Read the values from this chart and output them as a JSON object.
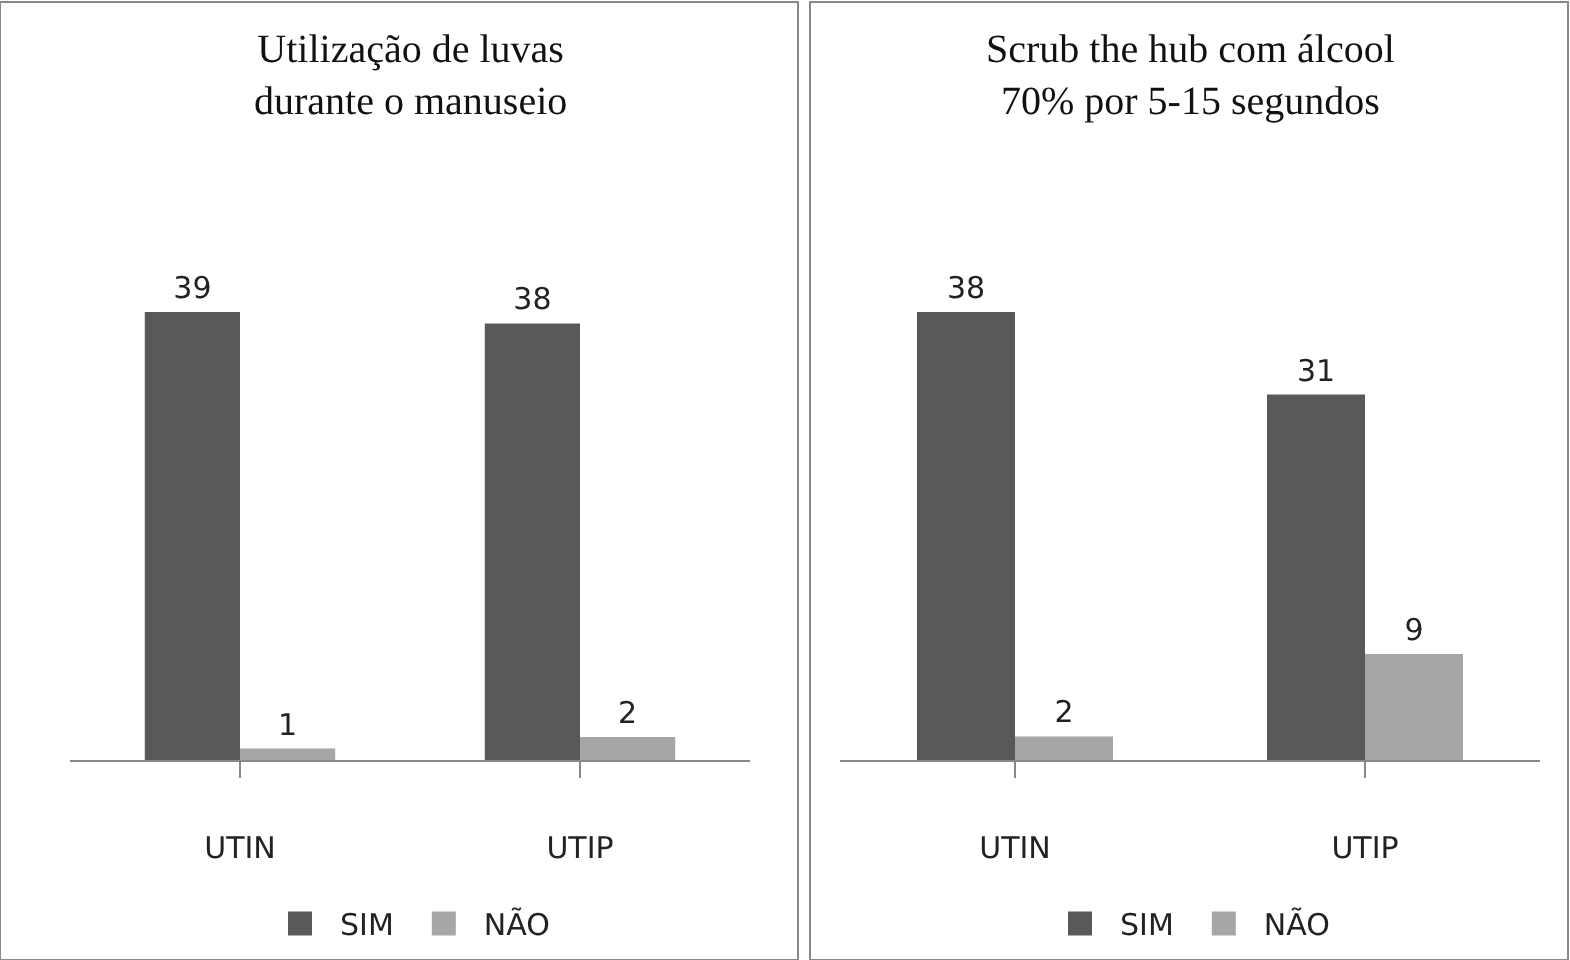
{
  "chart_data": [
    {
      "type": "bar",
      "title": "Utilização de luvas\ndurante o manuseio",
      "categories": [
        "UTIN",
        "UTIP"
      ],
      "series": [
        {
          "name": "SIM",
          "color": "#595959",
          "values": [
            39,
            38
          ]
        },
        {
          "name": "NÃO",
          "color": "#a6a6a6",
          "values": [
            1,
            2
          ]
        }
      ],
      "data_labels": true,
      "legend": "bottom"
    },
    {
      "type": "bar",
      "title": "Scrub the hub com álcool\n70% por 5-15 segundos",
      "categories": [
        "UTIN",
        "UTIP"
      ],
      "series": [
        {
          "name": "SIM",
          "color": "#595959",
          "values": [
            38,
            31
          ]
        },
        {
          "name": "NÃO",
          "color": "#a6a6a6",
          "values": [
            2,
            9
          ]
        }
      ],
      "data_labels": true,
      "legend": "bottom"
    }
  ]
}
